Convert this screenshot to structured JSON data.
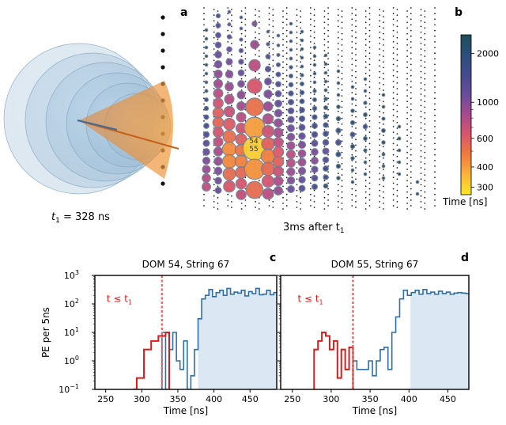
{
  "panel_labels": {
    "a": "a",
    "b": "b",
    "c": "c",
    "d": "d"
  },
  "captions": {
    "t1_label": "t",
    "t1_sub": "1",
    "t1_value": " = 328 ns",
    "after_label": "3ms after t",
    "after_sub": "1"
  },
  "colors": {
    "cone_orange": "#f08a24",
    "sphere_blue": "#9ec3dd",
    "step_red": "#d81b1b",
    "step_blue": "#2f6fa8",
    "fill_blue": "#dbe7f2",
    "threshold": "#ee6a6a"
  },
  "event_display": {
    "highlighted_doms": [
      "54",
      "55"
    ],
    "colorbar": {
      "title": "Time [ns]",
      "ticks": [
        300,
        400,
        600,
        1000,
        2000
      ],
      "range": [
        270,
        2600
      ],
      "colors": [
        "#fde725",
        "#f9b43e",
        "#ef7b3e",
        "#d9566b",
        "#a84a8c",
        "#6a4c9c",
        "#454a8f",
        "#2c4f7b",
        "#1f4d5a"
      ]
    }
  },
  "chart_data": [
    {
      "type": "histogram",
      "panel": "c",
      "title": "DOM 54, String 67",
      "xlabel": "Time [ns]",
      "ylabel": "PE per 5ns",
      "threshold_label": "t ≤ t",
      "threshold_sub": "1",
      "threshold_x": 328,
      "xlim": [
        235,
        487
      ],
      "ylim": [
        0.1,
        1000
      ],
      "yscale": "log",
      "x_ticks": [
        250,
        300,
        350,
        400,
        450
      ],
      "y_ticks": [
        "10^-1",
        "10^0",
        "10^1",
        "10^2",
        "10^3"
      ],
      "bin_width": 5,
      "fill_from": 378,
      "pre_t1": {
        "x_start": 288,
        "values": [
          0.1,
          0.25,
          0.25,
          2.5,
          2.5,
          5.0,
          5.0,
          7.5,
          7.5,
          10
        ]
      },
      "post_t1": {
        "x_start": 328,
        "values": [
          10,
          0.1,
          2.5,
          10,
          1.0,
          0.5,
          5.0,
          0.1,
          0.3,
          2.5,
          30,
          150,
          200,
          320,
          180,
          250,
          300,
          200,
          350,
          220,
          260,
          240,
          300,
          190,
          270,
          230,
          350,
          210,
          220,
          300,
          210,
          250
        ]
      }
    },
    {
      "type": "histogram",
      "panel": "d",
      "title": "DOM 55, String 67",
      "xlabel": "Time [ns]",
      "ylabel": "",
      "threshold_label": "t ≤ t",
      "threshold_sub": "1",
      "threshold_x": 328,
      "xlim": [
        235,
        477
      ],
      "ylim": [
        0.1,
        1000
      ],
      "yscale": "log",
      "x_ticks": [
        250,
        300,
        350,
        400,
        450
      ],
      "y_ticks": [],
      "bin_width": 5,
      "fill_from": 402,
      "pre_t1": {
        "x_start": 278,
        "values": [
          2.5,
          5.0,
          10,
          7.5,
          2.5,
          5.0,
          0.25,
          2.5,
          0.5,
          3.0
        ]
      },
      "post_t1": {
        "x_start": 328,
        "values": [
          1.0,
          0.5,
          0.5,
          0.5,
          1.0,
          0.3,
          1.0,
          2.5,
          3.0,
          0.5,
          10,
          35,
          150,
          300,
          200,
          250,
          300,
          220,
          320,
          230,
          260,
          220,
          280,
          230,
          260,
          220,
          240,
          250,
          240,
          230
        ]
      }
    }
  ]
}
